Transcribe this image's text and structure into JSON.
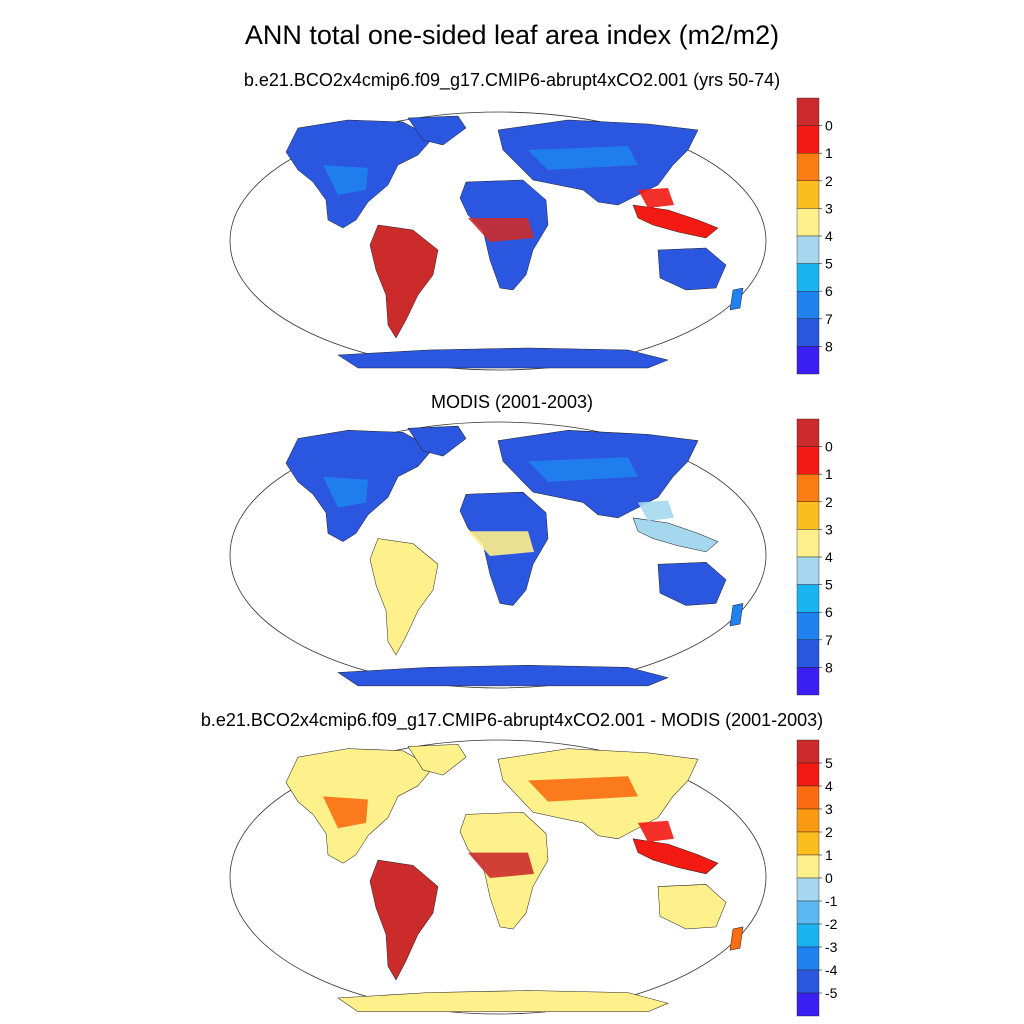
{
  "title": "ANN total one-sided leaf area index (m2/m2)",
  "panels": [
    {
      "id": "model",
      "title": "b.e21.BCO2x4cmip6.f09_g17.CMIP6-abrupt4xCO2.001 (yrs 50-74)",
      "colorbar": {
        "colors": [
          "#3a1ef2",
          "#2b57e0",
          "#1f82f0",
          "#1ab4f2",
          "#a5d8ee",
          "#fef08a",
          "#fcbd1e",
          "#fb7c10",
          "#f21a12",
          "#cc2b2b"
        ],
        "tick_labels": [
          "0",
          "1",
          "2",
          "3",
          "4",
          "5",
          "6",
          "7",
          "8"
        ]
      },
      "palette": {
        "land": "#2b57e0",
        "trop": "#cc2b2b",
        "mid": "#1f82f0",
        "high": "#f21a12"
      }
    },
    {
      "id": "obs",
      "title": "MODIS (2001-2003)",
      "colorbar": {
        "colors": [
          "#3a1ef2",
          "#2b57e0",
          "#1f82f0",
          "#1ab4f2",
          "#a5d8ee",
          "#fef08a",
          "#fcbd1e",
          "#fb7c10",
          "#f21a12",
          "#cc2b2b"
        ],
        "tick_labels": [
          "0",
          "1",
          "2",
          "3",
          "4",
          "5",
          "6",
          "7",
          "8"
        ]
      },
      "palette": {
        "land": "#2b57e0",
        "trop": "#fef08a",
        "mid": "#1f82f0",
        "high": "#a5d8ee"
      }
    },
    {
      "id": "diff",
      "title": "b.e21.BCO2x4cmip6.f09_g17.CMIP6-abrupt4xCO2.001 - MODIS (2001-2003)",
      "colorbar": {
        "colors": [
          "#3a1ef2",
          "#2b57e0",
          "#1f82f0",
          "#1ab4f2",
          "#5cb8f2",
          "#a5d8ee",
          "#fef08a",
          "#fcbd1e",
          "#fb9a10",
          "#fb6d10",
          "#f21a12",
          "#cc2b2b"
        ],
        "tick_labels": [
          "5",
          "4",
          "3",
          "2",
          "1",
          "0",
          "-1",
          "-2",
          "-3",
          "-4",
          "-5"
        ]
      },
      "palette": {
        "land": "#fef08a",
        "trop": "#cc2b2b",
        "mid": "#fb6d10",
        "high": "#f21a12"
      }
    }
  ]
}
